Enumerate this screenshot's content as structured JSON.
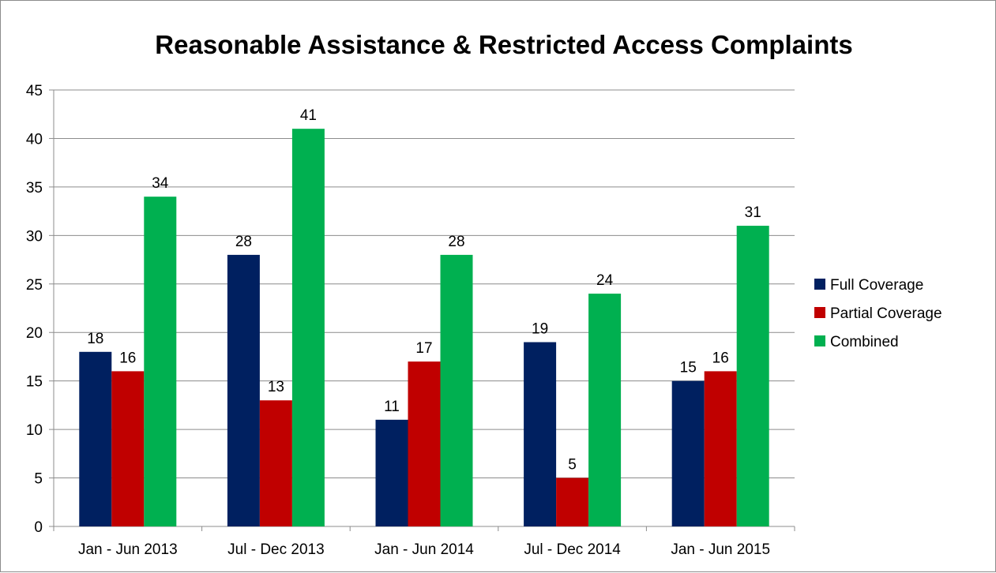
{
  "chart_data": {
    "type": "bar",
    "title": "Reasonable Assistance & Restricted Access Complaints",
    "xlabel": "",
    "ylabel": "",
    "categories": [
      "Jan - Jun 2013",
      "Jul - Dec 2013",
      "Jan - Jun 2014",
      "Jul - Dec 2014",
      "Jan - Jun 2015"
    ],
    "series": [
      {
        "name": "Full Coverage",
        "color": "#002060",
        "values": [
          18,
          28,
          11,
          19,
          15
        ]
      },
      {
        "name": "Partial Coverage",
        "color": "#c00000",
        "values": [
          16,
          13,
          17,
          5,
          16
        ]
      },
      {
        "name": "Combined",
        "color": "#00b050",
        "values": [
          34,
          41,
          28,
          24,
          31
        ]
      }
    ],
    "ylim": [
      0,
      45
    ],
    "ytick_step": 5,
    "grid": true,
    "data_labels": true,
    "legend_position": "right"
  }
}
